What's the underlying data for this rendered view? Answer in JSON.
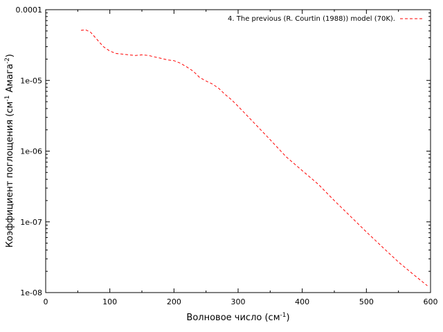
{
  "chart_data": {
    "type": "line",
    "xlabel": {
      "base": "Волновое число (см",
      "sup": "-1",
      "tail": ")"
    },
    "ylabel": {
      "base": "Коэффициент поглощения (см",
      "sup1": "-1",
      "mid": " Амага",
      "sup2": "-2",
      "tail": ")"
    },
    "xlim": [
      0,
      600
    ],
    "ylim": [
      1e-08,
      0.0001
    ],
    "yscale": "log",
    "x_ticks": [
      0,
      100,
      200,
      300,
      400,
      500,
      600
    ],
    "x_tick_labels": [
      "0",
      "100",
      "200",
      "300",
      "400",
      "500",
      "600"
    ],
    "y_ticks": [
      1e-08,
      1e-07,
      1e-06,
      1e-05,
      0.0001
    ],
    "y_tick_labels": [
      "1e-08",
      "1e-07",
      "1e-06",
      "1e-05",
      "0.0001"
    ],
    "grid": false,
    "legend_position": "top-right",
    "series": [
      {
        "name": "4. The previous (R. Courtin (1988)) model (70K).",
        "color": "#ff0000",
        "line_style": "dashed",
        "x": [
          55,
          62,
          70,
          80,
          90,
          100,
          110,
          120,
          130,
          140,
          150,
          160,
          170,
          180,
          190,
          200,
          210,
          220,
          230,
          240,
          250,
          260,
          270,
          280,
          290,
          300,
          325,
          350,
          375,
          400,
          425,
          450,
          475,
          500,
          525,
          550,
          575,
          595
        ],
        "y": [
          5.1e-05,
          5.2e-05,
          4.8e-05,
          3.8e-05,
          3e-05,
          2.6e-05,
          2.4e-05,
          2.35e-05,
          2.3e-05,
          2.25e-05,
          2.3e-05,
          2.25e-05,
          2.15e-05,
          2.05e-05,
          1.95e-05,
          1.9e-05,
          1.75e-05,
          1.55e-05,
          1.35e-05,
          1.1e-05,
          9.8e-06,
          8.9e-06,
          7.7e-06,
          6.3e-06,
          5.3e-06,
          4.3e-06,
          2.5e-06,
          1.45e-06,
          8.3e-07,
          5.3e-07,
          3.4e-07,
          2e-07,
          1.2e-07,
          7.2e-08,
          4.4e-08,
          2.7e-08,
          1.75e-08,
          1.25e-08
        ]
      }
    ]
  }
}
